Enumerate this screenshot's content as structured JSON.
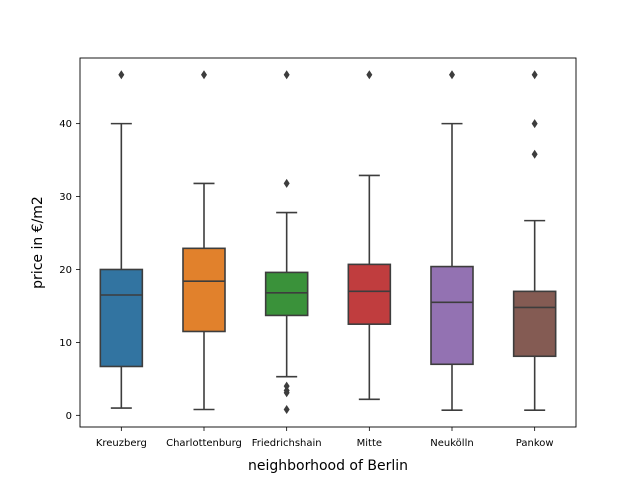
{
  "chart_data": {
    "type": "box",
    "xlabel": "neighborhood of Berlin",
    "ylabel": "price in €/m2",
    "ylim": [
      -1.6,
      49
    ],
    "yticks": [
      0,
      10,
      20,
      30,
      40
    ],
    "grid": false,
    "series": [
      {
        "name": "Kreuzberg",
        "color": "#3274a1",
        "whisker_low": 1.0,
        "q1": 6.7,
        "median": 16.5,
        "q3": 20.0,
        "whisker_high": 40.0,
        "outliers": [
          46.7
        ]
      },
      {
        "name": "Charlottenburg",
        "color": "#e1812c",
        "whisker_low": 0.8,
        "q1": 11.5,
        "median": 18.4,
        "q3": 22.9,
        "whisker_high": 31.8,
        "outliers": [
          46.7
        ]
      },
      {
        "name": "Friedrichshain",
        "color": "#3a923a",
        "whisker_low": 5.3,
        "q1": 13.7,
        "median": 16.8,
        "q3": 19.6,
        "whisker_high": 27.8,
        "outliers": [
          46.7,
          31.8,
          4.0,
          3.4,
          3.1,
          0.8
        ]
      },
      {
        "name": "Mitte",
        "color": "#c03d3e",
        "whisker_low": 2.2,
        "q1": 12.5,
        "median": 17.0,
        "q3": 20.7,
        "whisker_high": 32.9,
        "outliers": [
          46.7
        ]
      },
      {
        "name": "Neukölln",
        "color": "#9372b2",
        "whisker_low": 0.7,
        "q1": 7.0,
        "median": 15.5,
        "q3": 20.4,
        "whisker_high": 40.0,
        "outliers": [
          46.7
        ]
      },
      {
        "name": "Pankow",
        "color": "#845b53",
        "whisker_low": 0.7,
        "q1": 8.1,
        "median": 14.8,
        "q3": 17.0,
        "whisker_high": 26.7,
        "outliers": [
          46.7,
          40.0,
          35.8
        ]
      }
    ]
  }
}
